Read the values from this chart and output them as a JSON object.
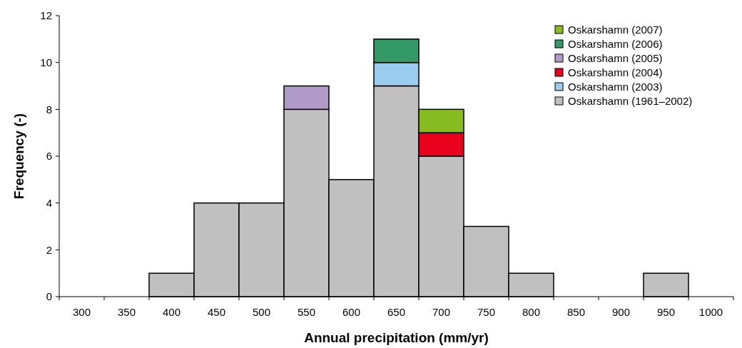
{
  "chart_data": {
    "type": "bar",
    "stacked": true,
    "xlabel": "Annual precipitation (mm/yr)",
    "ylabel": "Frequency (-)",
    "categories": [
      "300",
      "350",
      "400",
      "450",
      "500",
      "550",
      "600",
      "650",
      "700",
      "750",
      "800",
      "850",
      "900",
      "950",
      "1000"
    ],
    "series": [
      {
        "name": "Oskarshamn (1961–2002)",
        "color": "#c0c0c0",
        "values": [
          0,
          0,
          1,
          4,
          4,
          8,
          5,
          9,
          6,
          3,
          1,
          0,
          0,
          1,
          0
        ]
      },
      {
        "name": "Oskarshamn (2003)",
        "color": "#99ccee",
        "values": [
          null,
          null,
          null,
          null,
          null,
          null,
          null,
          1,
          null,
          null,
          null,
          null,
          null,
          null,
          null
        ]
      },
      {
        "name": "Oskarshamn (2004)",
        "color": "#e8001c",
        "values": [
          null,
          null,
          null,
          null,
          null,
          null,
          null,
          null,
          1,
          null,
          null,
          null,
          null,
          null,
          null
        ]
      },
      {
        "name": "Oskarshamn (2005)",
        "color": "#b09ac8",
        "values": [
          null,
          null,
          null,
          null,
          null,
          1,
          null,
          null,
          null,
          null,
          null,
          null,
          null,
          null,
          null
        ]
      },
      {
        "name": "Oskarshamn (2006)",
        "color": "#339966",
        "values": [
          null,
          null,
          null,
          null,
          null,
          null,
          null,
          1,
          null,
          null,
          null,
          null,
          null,
          null,
          null
        ]
      },
      {
        "name": "Oskarshamn (2007)",
        "color": "#88bb22",
        "values": [
          null,
          null,
          null,
          null,
          null,
          null,
          null,
          null,
          1,
          null,
          null,
          null,
          null,
          null,
          null
        ]
      }
    ],
    "ylim": [
      0,
      12
    ],
    "yticks": [
      0,
      2,
      4,
      6,
      8,
      10,
      12
    ],
    "grid": false,
    "legend": "top right"
  }
}
